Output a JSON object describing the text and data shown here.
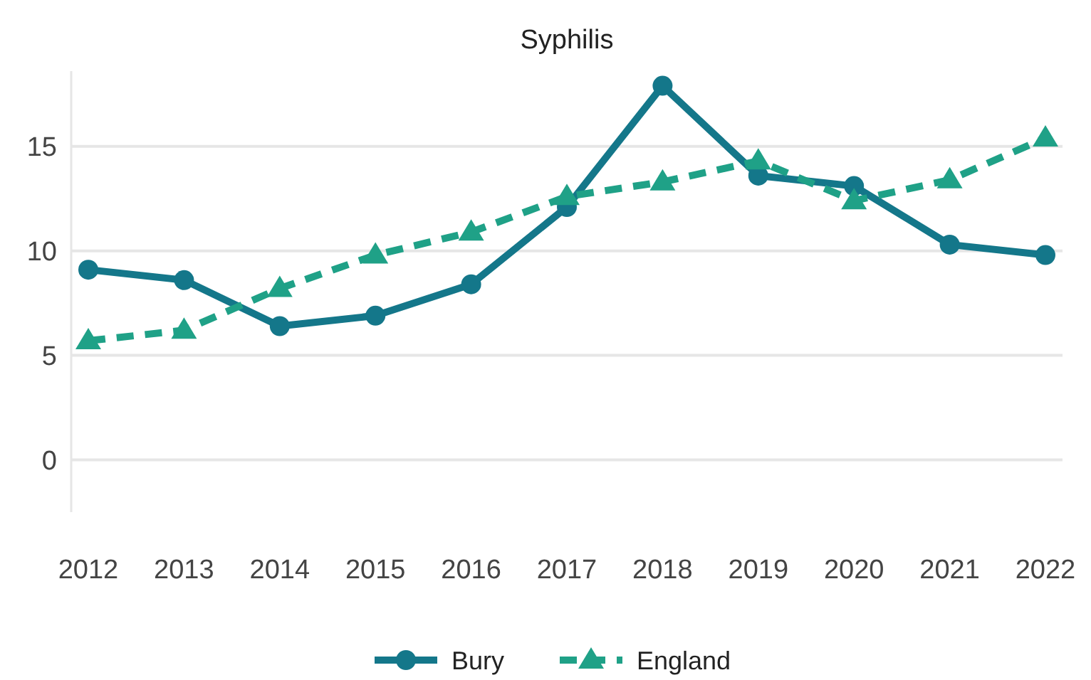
{
  "chart_data": {
    "type": "line",
    "title": "Syphilis",
    "categories": [
      "2012",
      "2013",
      "2014",
      "2015",
      "2016",
      "2017",
      "2018",
      "2019",
      "2020",
      "2021",
      "2022"
    ],
    "series": [
      {
        "name": "Bury",
        "color": "#14778a",
        "marker": "circle",
        "line_style": "solid",
        "values": [
          9.1,
          8.6,
          6.4,
          6.9,
          8.4,
          12.1,
          17.9,
          13.6,
          13.1,
          10.3,
          9.8
        ]
      },
      {
        "name": "England",
        "color": "#1fa187",
        "marker": "triangle",
        "line_style": "dashed",
        "values": [
          5.7,
          6.2,
          8.2,
          9.8,
          10.9,
          12.6,
          13.3,
          14.3,
          12.4,
          13.4,
          15.4
        ]
      }
    ],
    "ylim": [
      -2.5,
      18.6
    ],
    "yticks": [
      0,
      5,
      10,
      15
    ],
    "grid": "y",
    "legend": "bottom"
  }
}
